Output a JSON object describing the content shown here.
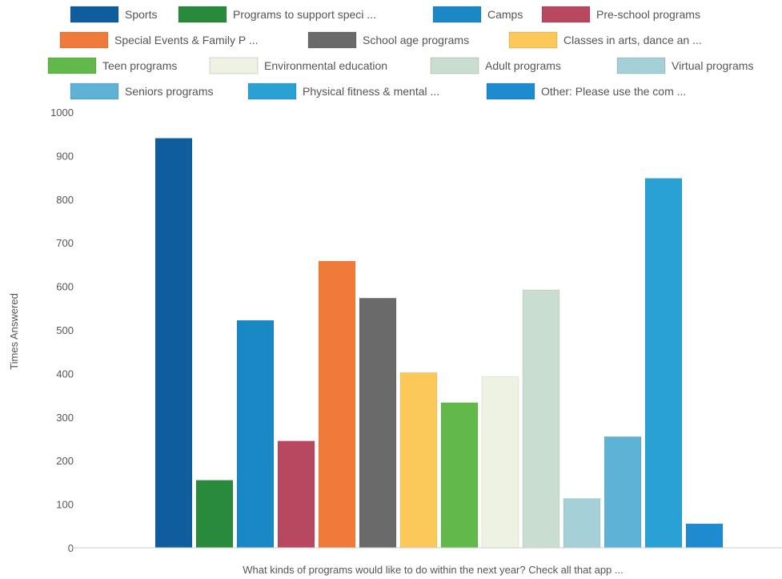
{
  "chart_data": {
    "type": "bar",
    "xlabel": "What kinds of programs would like to do within the next year? Check all that app ...",
    "ylabel": "Times Answered",
    "ylim": [
      0,
      1000
    ],
    "yticks": [
      0,
      100,
      200,
      300,
      400,
      500,
      600,
      700,
      800,
      900,
      1000
    ],
    "grid": false,
    "legend_position": "top",
    "series": [
      {
        "name": "Sports",
        "value": 940,
        "color": "#0f5d9c"
      },
      {
        "name": "Programs to support speci ...",
        "value": 155,
        "color": "#2a8a3c"
      },
      {
        "name": "Camps",
        "value": 522,
        "color": "#1a88c4"
      },
      {
        "name": "Pre-school programs",
        "value": 245,
        "color": "#b8485f"
      },
      {
        "name": "Special Events & Family P ...",
        "value": 658,
        "color": "#f07a3a"
      },
      {
        "name": "School age programs",
        "value": 573,
        "color": "#6a6a6a"
      },
      {
        "name": "Classes in arts, dance an ...",
        "value": 402,
        "color": "#fbc95a"
      },
      {
        "name": "Teen programs",
        "value": 333,
        "color": "#63b84a"
      },
      {
        "name": "Environmental education",
        "value": 393,
        "color": "#edf2e2"
      },
      {
        "name": "Adult programs",
        "value": 592,
        "color": "#c9ddd0"
      },
      {
        "name": "Virtual programs",
        "value": 113,
        "color": "#a6d0d8"
      },
      {
        "name": "Seniors programs",
        "value": 255,
        "color": "#5eb2d6"
      },
      {
        "name": "Physical fitness & mental ...",
        "value": 848,
        "color": "#2aa1d4"
      },
      {
        "name": "Other: Please use the com ...",
        "value": 55,
        "color": "#1e8ad0"
      }
    ]
  }
}
